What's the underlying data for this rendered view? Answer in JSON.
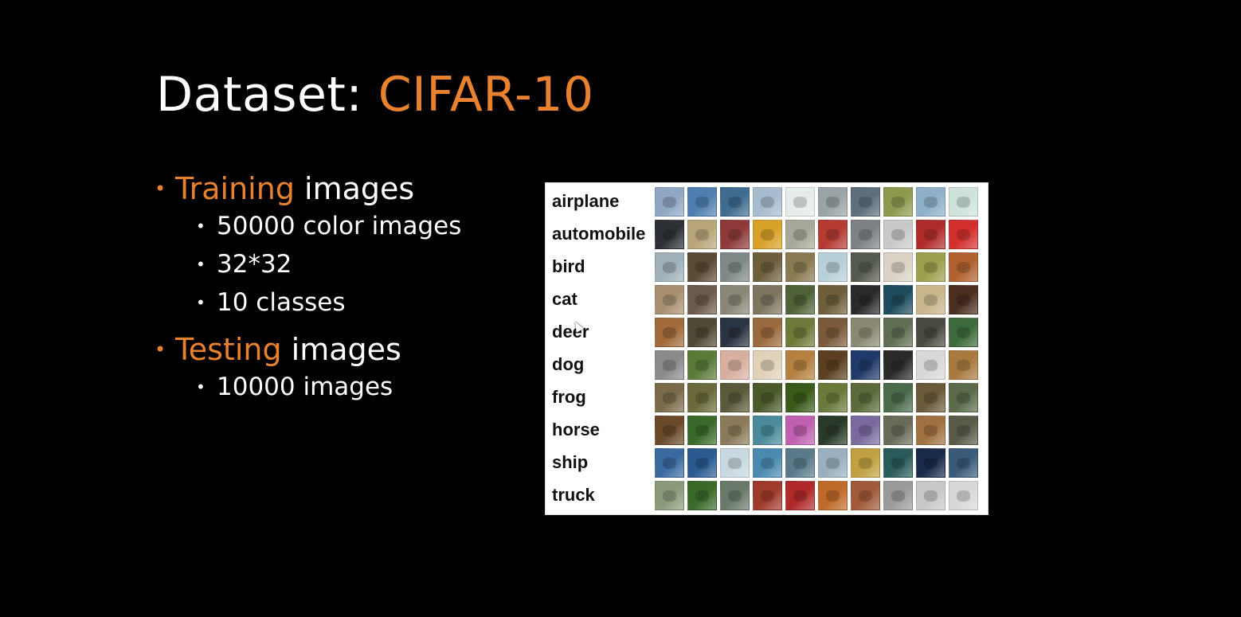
{
  "slide": {
    "title_prefix": "Dataset: ",
    "title_highlight": "CIFAR-10",
    "accent_color": "#e8822f",
    "background_color": "#000000"
  },
  "training": {
    "highlight": "Training",
    "rest": " images",
    "items": [
      "50000 color images",
      "32*32",
      "10 classes"
    ]
  },
  "testing": {
    "highlight": "Testing",
    "rest": " images",
    "items": [
      "10000 images"
    ]
  },
  "cifar_grid": {
    "classes": [
      "airplane",
      "automobile",
      "bird",
      "cat",
      "deer",
      "dog",
      "frog",
      "horse",
      "ship",
      "truck"
    ],
    "thumbnails_per_class": 10,
    "thumb_colors": [
      [
        "#8fa7c2",
        "#4f7fb0",
        "#3f6c8f",
        "#a8bccf",
        "#e6ece8",
        "#9aa3a6",
        "#5d6e7c",
        "#8b9a4f",
        "#8fb0c9",
        "#cfe3db"
      ],
      [
        "#2d3135",
        "#b8a57a",
        "#8e3a3a",
        "#d8a12a",
        "#a8a89a",
        "#b43a32",
        "#7d8186",
        "#c9c9c9",
        "#b02c2a",
        "#d3302e"
      ],
      [
        "#9fb0b8",
        "#5b4a35",
        "#7f8a88",
        "#6f5e3e",
        "#8a7a52",
        "#b7cfd8",
        "#555a4f",
        "#d9d2c4",
        "#9aa04b",
        "#b0612f"
      ],
      [
        "#a89070",
        "#6b5a4b",
        "#8a8678",
        "#7d7560",
        "#4f6238",
        "#6e5e3a",
        "#2a2a2a",
        "#1f4c5c",
        "#c9b68d",
        "#4a2f20"
      ],
      [
        "#a06a3a",
        "#4f4a35",
        "#2b3442",
        "#9a6a3e",
        "#6e7a3a",
        "#7a5a3a",
        "#8a8a72",
        "#5f6e52",
        "#4a4a42",
        "#3d6a3a"
      ],
      [
        "#8a8a8a",
        "#5a7a3a",
        "#d9b0a0",
        "#e0d2b8",
        "#b58040",
        "#5a4020",
        "#1f3a6a",
        "#2a2a2a",
        "#d8d8d8",
        "#a87a40"
      ],
      [
        "#7a6a4a",
        "#6a6a3a",
        "#5a5a3a",
        "#4a5a2a",
        "#3a5a1a",
        "#6a7a3a",
        "#5a6a3a",
        "#4a6a4a",
        "#6a5a3a",
        "#5a6a4a"
      ],
      [
        "#6a4a2a",
        "#3a6a2a",
        "#8a7a5a",
        "#4a8a9a",
        "#c060b0",
        "#2a3a2a",
        "#7a6aa0",
        "#6a6a5a",
        "#a07040",
        "#5a5a4a"
      ],
      [
        "#3a6aa0",
        "#2a5a90",
        "#c8d8e0",
        "#4a8ab0",
        "#5a7a8a",
        "#9ab0c0",
        "#c0a040",
        "#2a5a5a",
        "#1a2a4a",
        "#3a5a7a"
      ],
      [
        "#8a9a7a",
        "#3a6a2a",
        "#6a7a6a",
        "#a03a2a",
        "#b02a2a",
        "#c06a2a",
        "#a05a3a",
        "#9a9a9a",
        "#c8c8c8",
        "#d8d8d8"
      ]
    ]
  }
}
